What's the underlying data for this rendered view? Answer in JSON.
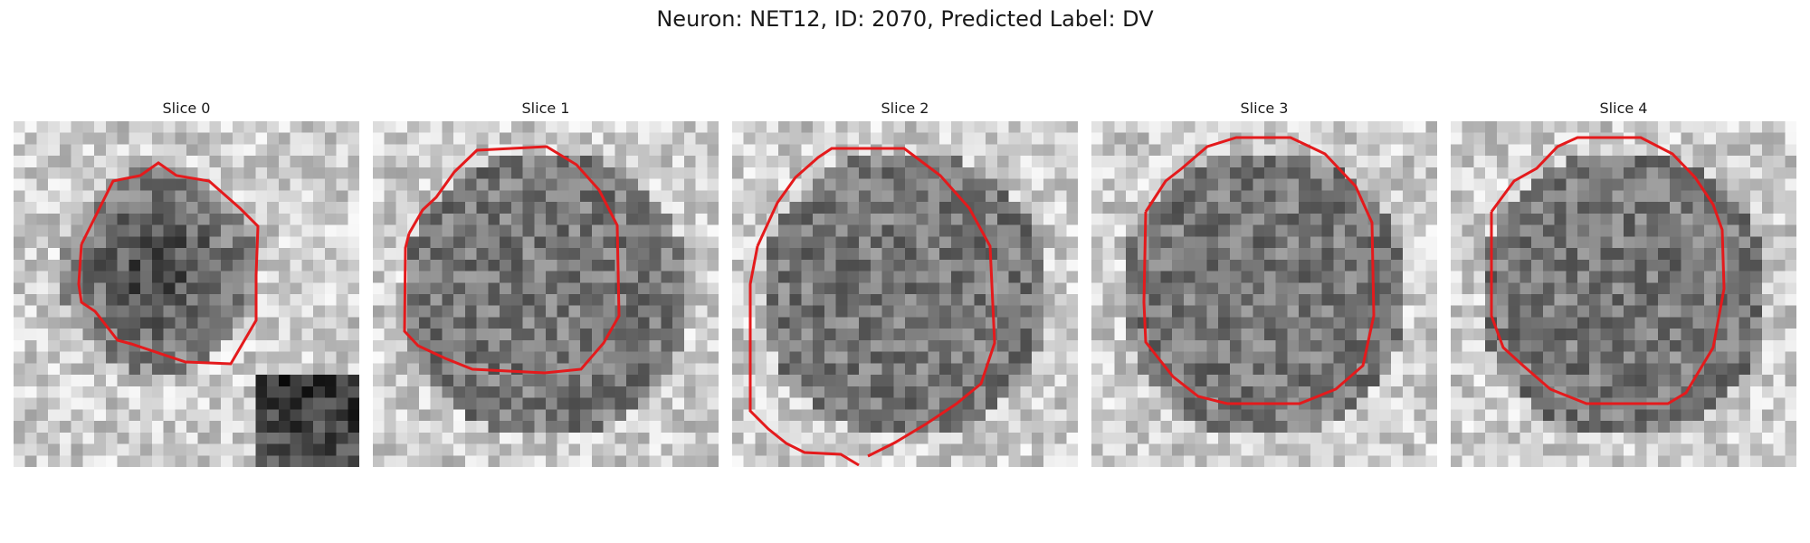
{
  "figure": {
    "title": "Neuron: NET12, ID: 2070, Predicted Label: DV"
  },
  "panels": [
    {
      "title": "Slice 0",
      "image_icon": "grayscale-microscopy-slice",
      "dark_blob": true
    },
    {
      "title": "Slice 1",
      "image_icon": "grayscale-microscopy-slice"
    },
    {
      "title": "Slice 2",
      "image_icon": "grayscale-microscopy-slice"
    },
    {
      "title": "Slice 3",
      "image_icon": "grayscale-microscopy-slice"
    },
    {
      "title": "Slice 4",
      "image_icon": "grayscale-microscopy-slice"
    }
  ],
  "colors": {
    "contour": "#e41a1c",
    "background": "#ffffff"
  }
}
